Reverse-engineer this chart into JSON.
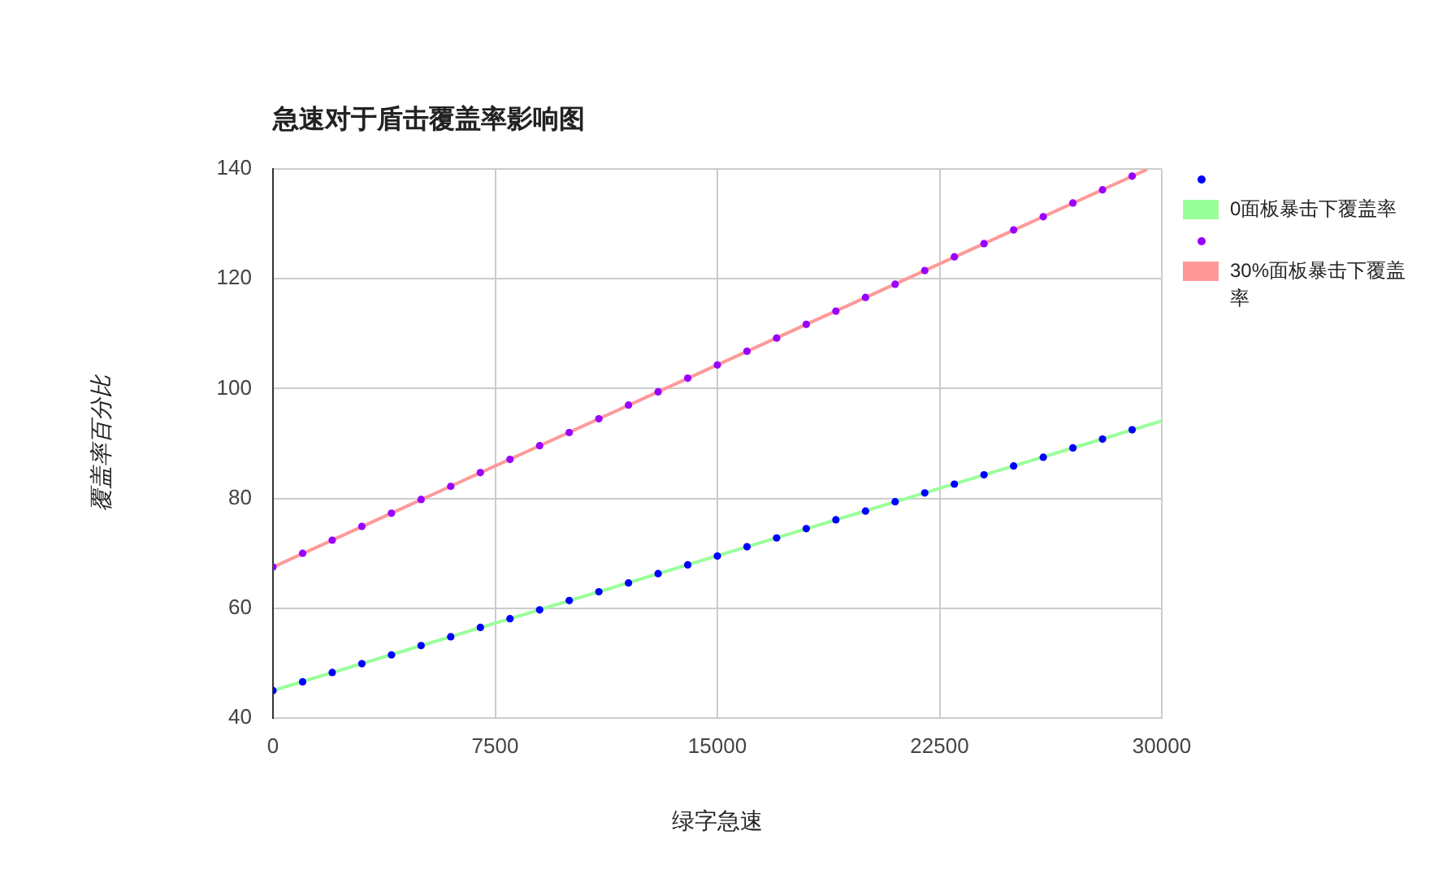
{
  "chart_data": {
    "type": "scatter",
    "title": "急速对于盾击覆盖率影响图",
    "xlabel": "绿字急速",
    "ylabel": "覆盖率百分比",
    "x": [
      0,
      1000,
      2000,
      3000,
      4000,
      5000,
      6000,
      7000,
      8000,
      9000,
      10000,
      11000,
      12000,
      13000,
      14000,
      15000,
      16000,
      17000,
      18000,
      19000,
      20000,
      21000,
      22000,
      23000,
      24000,
      25000,
      26000,
      27000,
      28000,
      29000
    ],
    "series": [
      {
        "color": "#0000ff",
        "values": [
          45,
          46.6,
          48.3,
          49.9,
          51.5,
          53.2,
          54.8,
          56.5,
          58.1,
          59.7,
          61.4,
          63.0,
          64.6,
          66.3,
          67.9,
          69.5,
          71.2,
          72.8,
          74.5,
          76.1,
          77.7,
          79.4,
          81.0,
          82.6,
          84.3,
          85.9,
          87.5,
          89.2,
          90.8,
          92.5
        ]
      },
      {
        "name": "0面板暴击下覆盖率",
        "type": "line",
        "marker": "none",
        "color": "#99ff99",
        "x": [
          0,
          30000
        ],
        "values": [
          45,
          94.1
        ]
      },
      {
        "color": "#9900ff",
        "values": [
          67.5,
          70.0,
          72.4,
          74.9,
          77.3,
          79.8,
          82.2,
          84.7,
          87.1,
          89.6,
          92.0,
          94.5,
          97.0,
          99.4,
          101.9,
          104.3,
          106.8,
          109.2,
          111.7,
          114.1,
          116.6,
          119.0,
          121.5,
          124.0,
          126.4,
          128.9,
          131.3,
          133.8,
          136.2,
          138.7
        ]
      },
      {
        "name": "30%面板暴击下覆盖率",
        "type": "line",
        "marker": "none",
        "color": "#ff9999",
        "x": [
          0,
          29500
        ],
        "values": [
          67.5,
          139.9
        ]
      }
    ],
    "xlim": [
      0,
      30000
    ],
    "xticks": [
      0,
      7500,
      15000,
      22500,
      30000
    ],
    "ylim": [
      40,
      140
    ],
    "yticks": [
      40,
      60,
      80,
      100,
      120,
      140
    ],
    "grid": true,
    "legend": "right",
    "marker": "circle"
  }
}
